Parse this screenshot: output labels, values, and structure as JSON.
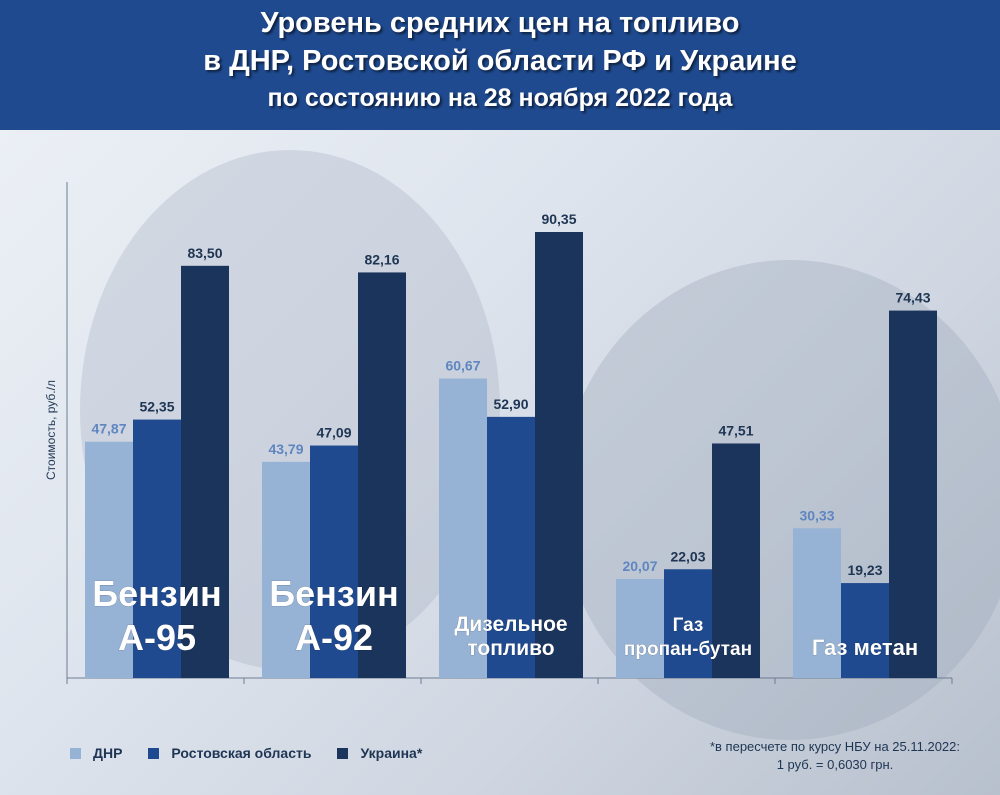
{
  "header": {
    "title_line1": "Уровень средних цен на топливо",
    "title_line2": "в ДНР, Ростовской области РФ и Украине",
    "title_line3": "по состоянию на 28 ноября 2022 года"
  },
  "colors": {
    "header_bg": "#1f4a8f",
    "dnr": "#96b3d6",
    "rostov": "#1f4a8f",
    "ukraine": "#1a345c",
    "value_light": "#5f86c0",
    "value_dark": "#1e3553"
  },
  "chart_data": {
    "type": "bar",
    "title": "Уровень средних цен на топливо в ДНР, Ростовской области РФ и Украине по состоянию на 28 ноября 2022 года",
    "ylabel": "Стоимость, руб./л",
    "xlabel": "",
    "ylim": [
      0,
      100
    ],
    "grid": false,
    "legend_position": "bottom-left",
    "categories": [
      [
        "Бензин",
        "А-95"
      ],
      [
        "Бензин",
        "А-92"
      ],
      [
        "Дизельное",
        "топливо"
      ],
      [
        "Газ",
        "пропан-бутан"
      ],
      [
        "Газ метан"
      ]
    ],
    "series": [
      {
        "name": "ДНР",
        "values": [
          47.87,
          43.79,
          60.67,
          20.07,
          30.33
        ],
        "labels": [
          "47,87",
          "43,79",
          "60,67",
          "20,07",
          "30,33"
        ]
      },
      {
        "name": "Ростовская область",
        "values": [
          52.35,
          47.09,
          52.9,
          22.03,
          19.23
        ],
        "labels": [
          "52,35",
          "47,09",
          "52,90",
          "22,03",
          "19,23"
        ]
      },
      {
        "name": "Украина*",
        "values": [
          83.5,
          82.16,
          90.35,
          47.51,
          74.43
        ],
        "labels": [
          "83,50",
          "82,16",
          "90,35",
          "47,51",
          "74,43"
        ]
      }
    ]
  },
  "footnote": {
    "line1": "*в пересчете по курсу НБУ на 25.11.2022:",
    "line2": "1 руб. = 0,6030 грн."
  }
}
